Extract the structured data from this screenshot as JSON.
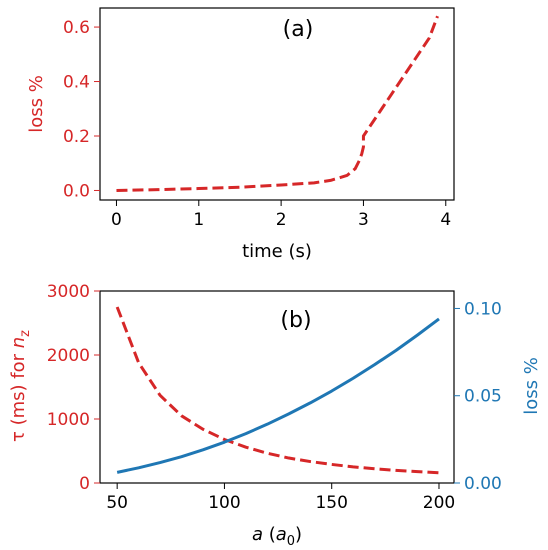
{
  "colors": {
    "red": "#d62728",
    "blue": "#1f77b4",
    "black": "#000000"
  },
  "chart_data": [
    {
      "type": "line",
      "panel_label": "(a)",
      "xlabel": "time (s)",
      "ylabel": "loss %",
      "xlim": [
        -0.2,
        4.1
      ],
      "ylim": [
        -0.035,
        0.67
      ],
      "xticks": [
        0,
        1,
        2,
        3,
        4
      ],
      "xtick_labels": [
        "0",
        "1",
        "2",
        "3",
        "4"
      ],
      "yticks": [
        0.0,
        0.2,
        0.4,
        0.6
      ],
      "ytick_labels": [
        "0.0",
        "0.2",
        "0.4",
        "0.6"
      ],
      "grid": false,
      "series": [
        {
          "color": "#d62728",
          "style": "dashed",
          "x": [
            0,
            0.5,
            1.0,
            1.5,
            2.0,
            2.4,
            2.6,
            2.8,
            2.9,
            2.95,
            2.98,
            3.0,
            3.0,
            3.2,
            3.4,
            3.6,
            3.8,
            3.9
          ],
          "y": [
            0.0,
            0.003,
            0.007,
            0.012,
            0.02,
            0.028,
            0.037,
            0.055,
            0.08,
            0.11,
            0.135,
            0.16,
            0.2,
            0.29,
            0.38,
            0.47,
            0.56,
            0.64
          ]
        }
      ]
    },
    {
      "type": "line",
      "panel_label": "(b)",
      "xlabel": "a (a0)",
      "xlabel_parts": {
        "var": "a",
        "open": " (",
        "base": "a",
        "sub": "0",
        "close": ")"
      },
      "ylabel": "τ (ms) for nz",
      "ylabel_parts": {
        "prefix": "τ (ms) for ",
        "base": "n",
        "sub": "z"
      },
      "y2label": "loss %",
      "xlim": [
        42,
        207
      ],
      "ylim": [
        0,
        3000
      ],
      "y2lim": [
        0,
        0.11
      ],
      "xticks": [
        50,
        100,
        150,
        200
      ],
      "xtick_labels": [
        "50",
        "100",
        "150",
        "200"
      ],
      "yticks": [
        0,
        1000,
        2000,
        3000
      ],
      "ytick_labels": [
        "0",
        "1000",
        "2000",
        "3000"
      ],
      "y2ticks": [
        0.0,
        0.05,
        0.1
      ],
      "y2tick_labels": [
        "0.00",
        "0.05",
        "0.10"
      ],
      "grid": false,
      "series": [
        {
          "axis": "left",
          "color": "#d62728",
          "style": "dashed",
          "x": [
            50,
            60,
            70,
            80,
            90,
            100,
            110,
            120,
            130,
            140,
            150,
            160,
            170,
            180,
            190,
            200
          ],
          "y": [
            2750,
            1880,
            1370,
            1050,
            840,
            680,
            560,
            465,
            390,
            335,
            290,
            252,
            222,
            197,
            177,
            160
          ]
        },
        {
          "axis": "right",
          "color": "#1f77b4",
          "style": "solid",
          "x": [
            50,
            60,
            70,
            80,
            90,
            100,
            110,
            120,
            130,
            140,
            150,
            160,
            170,
            180,
            190,
            200
          ],
          "y": [
            0.0061,
            0.0087,
            0.0117,
            0.0151,
            0.019,
            0.0234,
            0.0283,
            0.0337,
            0.0396,
            0.0459,
            0.0527,
            0.06,
            0.0678,
            0.076,
            0.0848,
            0.094
          ]
        }
      ]
    }
  ]
}
